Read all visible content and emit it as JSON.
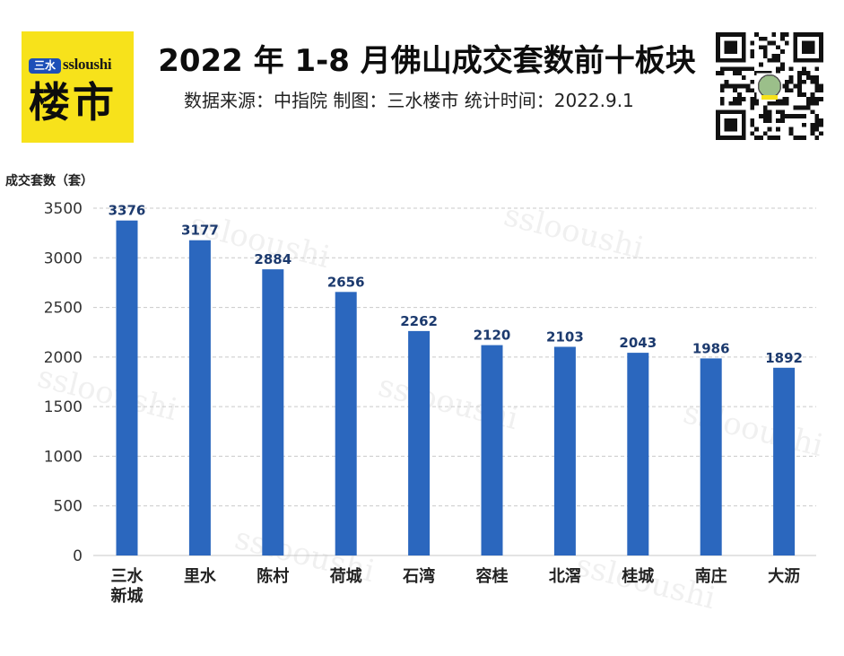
{
  "logo": {
    "badge": "三水",
    "en": "ssloushi",
    "cn": "楼市"
  },
  "header": {
    "title": "2022 年 1-8 月佛山成交套数前十板块",
    "subtitle": "数据来源：中指院  制图：三水楼市 统计时间：2022.9.1"
  },
  "watermark": "sslooushi",
  "colors": {
    "bar": "#2b67be",
    "label": "#1c3a6e",
    "logo_bg": "#f7e21b",
    "badge": "#1d4fb8"
  },
  "chart_data": {
    "type": "bar",
    "title": "2022 年 1-8 月佛山成交套数前十板块",
    "ylabel": "成交套数（套）",
    "xlabel": "",
    "categories": [
      "三水新城",
      "里水",
      "陈村",
      "荷城",
      "石湾",
      "容桂",
      "北滘",
      "桂城",
      "南庄",
      "大沥"
    ],
    "category_lines": [
      [
        "三水",
        "新城"
      ],
      [
        "里水"
      ],
      [
        "陈村"
      ],
      [
        "荷城"
      ],
      [
        "石湾"
      ],
      [
        "容桂"
      ],
      [
        "北滘"
      ],
      [
        "桂城"
      ],
      [
        "南庄"
      ],
      [
        "大沥"
      ]
    ],
    "values": [
      3376,
      3177,
      2884,
      2656,
      2262,
      2120,
      2103,
      2043,
      1986,
      1892
    ],
    "ylim": [
      0,
      3500
    ],
    "yticks": [
      0,
      500,
      1000,
      1500,
      2000,
      2500,
      3000,
      3500
    ],
    "grid": true
  }
}
